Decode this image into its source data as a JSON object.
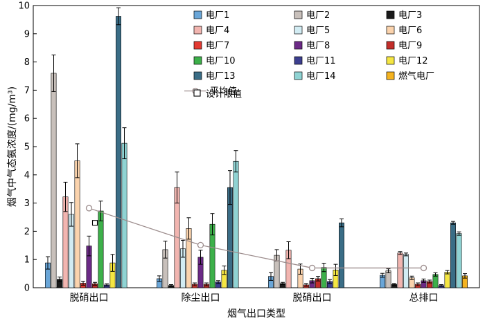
{
  "chart_data": {
    "type": "bar",
    "xlabel": "烟气出口类型",
    "ylabel": "烟气中气态氨浓度/(mg/m³)",
    "ylim": [
      0,
      10
    ],
    "yticks": [
      "0",
      "1",
      "2",
      "3",
      "4",
      "5",
      "6",
      "7",
      "8",
      "9",
      "10"
    ],
    "categories": [
      "脱硝出口",
      "除尘出口",
      "脱硝出口",
      "总排口"
    ],
    "grid": false,
    "legend_position": "top-right",
    "series": [
      {
        "name": "电厂1",
        "color": "#6aa6d8",
        "values": [
          0.88,
          0.32,
          0.4,
          0.44
        ],
        "errors": [
          0.22,
          0.1,
          0.14,
          0.07
        ]
      },
      {
        "name": "电厂2",
        "color": "#c8c0bb",
        "values": [
          7.6,
          1.35,
          1.15,
          0.6
        ],
        "errors": [
          0.65,
          0.3,
          0.2,
          0.07
        ]
      },
      {
        "name": "电厂3",
        "color": "#1a1a1a",
        "values": [
          0.3,
          0.08,
          0.15,
          0.12
        ],
        "errors": [
          0.08,
          0.03,
          0.04,
          0.03
        ]
      },
      {
        "name": "电厂4",
        "color": "#f2b5b0",
        "values": [
          3.22,
          3.55,
          1.33,
          1.23
        ],
        "errors": [
          0.52,
          0.55,
          0.3,
          0.05
        ]
      },
      {
        "name": "电厂5",
        "color": "#d2ecf3",
        "values": [
          2.6,
          1.38,
          null,
          1.18
        ],
        "errors": [
          0.42,
          0.3,
          null,
          0.05
        ]
      },
      {
        "name": "电厂6",
        "color": "#fbd3ad",
        "values": [
          4.5,
          2.1,
          0.66,
          0.35
        ],
        "errors": [
          0.6,
          0.38,
          0.18,
          0.06
        ]
      },
      {
        "name": "电厂7",
        "color": "#e33a32",
        "values": [
          0.16,
          0.12,
          0.1,
          0.12
        ],
        "errors": [
          0.07,
          0.05,
          0.05,
          0.05
        ]
      },
      {
        "name": "电厂8",
        "color": "#6b2a86",
        "values": [
          1.48,
          1.08,
          0.25,
          0.25
        ],
        "errors": [
          0.35,
          0.25,
          0.08,
          0.06
        ]
      },
      {
        "name": "电厂9",
        "color": "#c22e2a",
        "values": [
          0.14,
          0.12,
          0.32,
          0.22
        ],
        "errors": [
          0.05,
          0.05,
          0.08,
          0.05
        ]
      },
      {
        "name": "电厂10",
        "color": "#3db04a",
        "values": [
          2.72,
          2.25,
          0.72,
          0.47
        ],
        "errors": [
          0.35,
          0.38,
          0.15,
          0.06
        ]
      },
      {
        "name": "电厂11",
        "color": "#3c3f8f",
        "values": [
          0.1,
          0.2,
          0.22,
          0.08
        ],
        "errors": [
          0.04,
          0.05,
          0.07,
          0.03
        ]
      },
      {
        "name": "电厂12",
        "color": "#f5e642",
        "values": [
          0.88,
          0.62,
          0.63,
          0.55
        ],
        "errors": [
          0.3,
          0.15,
          0.2,
          0.06
        ]
      },
      {
        "name": "电厂13",
        "color": "#3a6d86",
        "values": [
          9.62,
          3.55,
          2.3,
          2.3
        ],
        "errors": [
          0.3,
          0.6,
          0.14,
          0.05
        ]
      },
      {
        "name": "电厂14",
        "color": "#8fd3d3",
        "values": [
          5.12,
          4.48,
          null,
          1.92
        ],
        "errors": [
          0.55,
          0.38,
          null,
          0.06
        ]
      },
      {
        "name": "燃气电厂",
        "color": "#f4b320",
        "values": [
          null,
          null,
          null,
          0.42
        ],
        "errors": [
          null,
          null,
          null,
          0.08
        ]
      }
    ],
    "average": {
      "name": "平均值",
      "color": "#9c8c8c",
      "values": [
        2.82,
        1.51,
        0.7,
        0.7
      ]
    },
    "design_limit": {
      "name": "设计限值",
      "value": 2.3,
      "category_index": 0
    }
  }
}
